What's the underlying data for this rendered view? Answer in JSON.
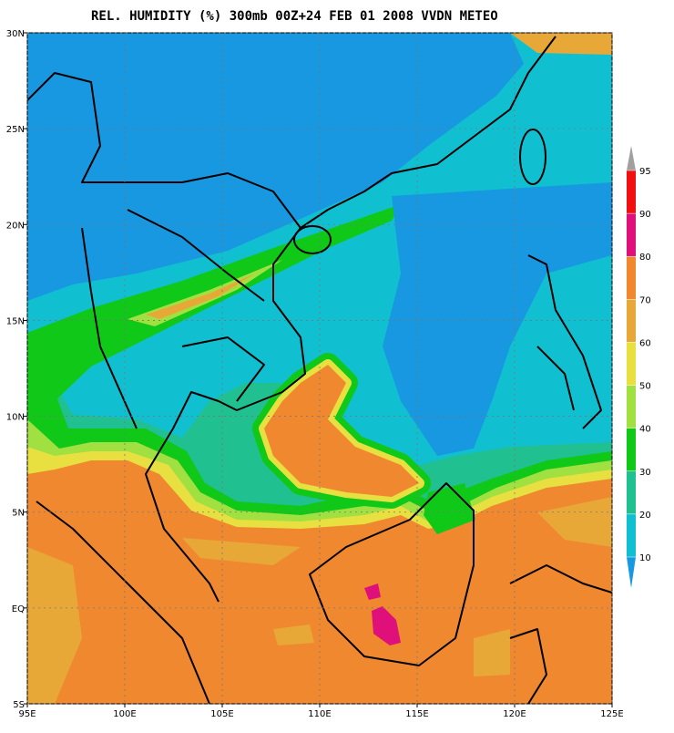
{
  "title": "REL. HUMIDITY (%) 300mb 00Z+24 FEB 01 2008 VVDN METEO",
  "lon_ticks": [
    {
      "value": 95,
      "label": "95E"
    },
    {
      "value": 100,
      "label": "100E"
    },
    {
      "value": 105,
      "label": "105E"
    },
    {
      "value": 110,
      "label": "110E"
    },
    {
      "value": 115,
      "label": "115E"
    },
    {
      "value": 120,
      "label": "120E"
    },
    {
      "value": 125,
      "label": "125E"
    }
  ],
  "lat_ticks": [
    {
      "value": 30,
      "label": "30N"
    },
    {
      "value": 25,
      "label": "25N"
    },
    {
      "value": 20,
      "label": "20N"
    },
    {
      "value": 15,
      "label": "15N"
    },
    {
      "value": 10,
      "label": "10N"
    },
    {
      "value": 5,
      "label": "5N"
    },
    {
      "value": 0,
      "label": "EQ"
    },
    {
      "value": -5,
      "label": "5S"
    }
  ],
  "legend": {
    "levels": [
      95,
      90,
      80,
      70,
      60,
      50,
      40,
      30,
      20,
      10
    ],
    "colors": [
      "#a0a0a0",
      "#f01010",
      "#e0107a",
      "#f08830",
      "#e8a838",
      "#e8e040",
      "#a0e040",
      "#10c818",
      "#20c090",
      "#10c0d0",
      "#1898e0"
    ]
  }
}
